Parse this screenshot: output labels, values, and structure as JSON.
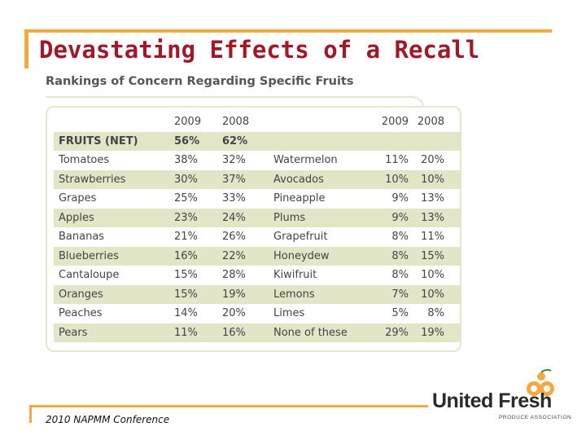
{
  "slide": {
    "title": "Devastating Effects of a Recall",
    "subtitle": "Rankings of Concern Regarding Specific Fruits",
    "footer": "2010 NAPMM Conference",
    "brand": {
      "name": "United Fresh",
      "tagline": "PRODUCE ASSOCIATION",
      "accent": "#f3a840",
      "title_color": "#a0192a",
      "band_color": "#e2e6c6"
    }
  },
  "table": {
    "header": [
      "",
      "2009",
      "2008",
      "",
      "2009",
      "2008"
    ],
    "rows": [
      [
        "FRUITS (NET)",
        "56%",
        "62%",
        "",
        "",
        ""
      ],
      [
        "Tomatoes",
        "38%",
        "32%",
        "Watermelon",
        "11%",
        "20%"
      ],
      [
        "Strawberries",
        "30%",
        "37%",
        "Avocados",
        "10%",
        "10%"
      ],
      [
        "Grapes",
        "25%",
        "33%",
        "Pineapple",
        "9%",
        "13%"
      ],
      [
        "Apples",
        "23%",
        "24%",
        "Plums",
        "9%",
        "13%"
      ],
      [
        "Bananas",
        "21%",
        "26%",
        "Grapefruit",
        "8%",
        "11%"
      ],
      [
        "Blueberries",
        "16%",
        "22%",
        "Honeydew",
        "8%",
        "15%"
      ],
      [
        "Cantaloupe",
        "15%",
        "28%",
        "Kiwifruit",
        "8%",
        "10%"
      ],
      [
        "Oranges",
        "15%",
        "19%",
        "Lemons",
        "7%",
        "10%"
      ],
      [
        "Peaches",
        "14%",
        "20%",
        "Limes",
        "5%",
        "8%"
      ],
      [
        "Pears",
        "11%",
        "16%",
        "None of these",
        "29%",
        "19%"
      ]
    ]
  }
}
